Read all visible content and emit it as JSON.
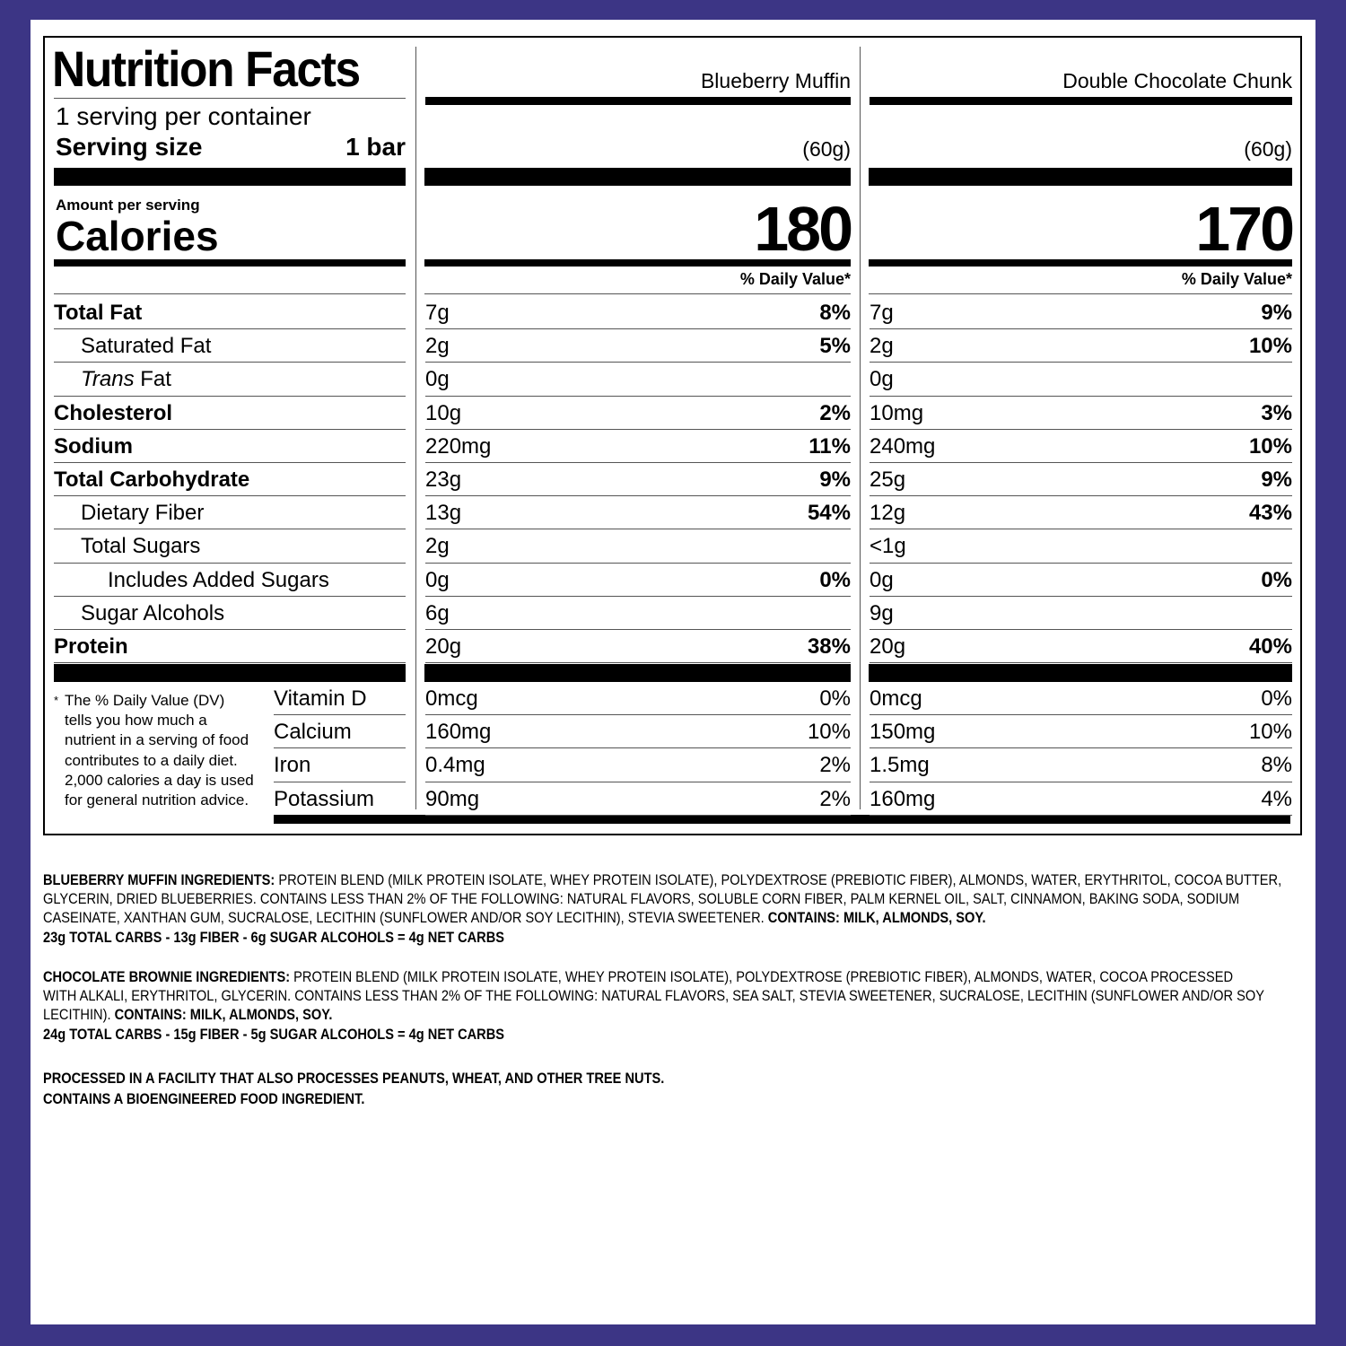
{
  "colors": {
    "background": "#3c3585",
    "panel": "#ffffff",
    "text": "#000000"
  },
  "header": {
    "title": "Nutrition Facts",
    "servings": "1 serving per container",
    "serving_size_label": "Serving size",
    "serving_size_value": "1 bar",
    "amount_per_serving": "Amount per serving",
    "calories_label": "Calories",
    "dv_header": "% Daily Value*"
  },
  "products": [
    {
      "name": "Blueberry Muffin",
      "weight": "(60g)",
      "calories": "180",
      "nutrients": [
        [
          "7g",
          "8%"
        ],
        [
          "2g",
          "5%"
        ],
        [
          "0g",
          ""
        ],
        [
          "10g",
          "2%"
        ],
        [
          "220mg",
          "11%"
        ],
        [
          "23g",
          "9%"
        ],
        [
          "13g",
          "54%"
        ],
        [
          "2g",
          ""
        ],
        [
          "0g",
          "0%"
        ],
        [
          "6g",
          ""
        ],
        [
          "20g",
          "38%"
        ]
      ],
      "vitamins": [
        [
          "0mcg",
          "0%"
        ],
        [
          "160mg",
          "10%"
        ],
        [
          "0.4mg",
          "2%"
        ],
        [
          "90mg",
          "2%"
        ]
      ]
    },
    {
      "name": "Double Chocolate Chunk",
      "weight": "(60g)",
      "calories": "170",
      "nutrients": [
        [
          "7g",
          "9%"
        ],
        [
          "2g",
          "10%"
        ],
        [
          "0g",
          ""
        ],
        [
          "10mg",
          "3%"
        ],
        [
          "240mg",
          "10%"
        ],
        [
          "25g",
          "9%"
        ],
        [
          "12g",
          "43%"
        ],
        [
          "<1g",
          ""
        ],
        [
          "0g",
          "0%"
        ],
        [
          "9g",
          ""
        ],
        [
          "20g",
          "40%"
        ]
      ],
      "vitamins": [
        [
          "0mcg",
          "0%"
        ],
        [
          "150mg",
          "10%"
        ],
        [
          "1.5mg",
          "8%"
        ],
        [
          "160mg",
          "4%"
        ]
      ]
    }
  ],
  "nutrient_labels": [
    {
      "label": "Total Fat",
      "bold": true,
      "indent": 0
    },
    {
      "label": "Saturated Fat",
      "bold": false,
      "indent": 1
    },
    {
      "label": "Trans Fat",
      "bold": false,
      "indent": 1,
      "italic_prefix": "Trans"
    },
    {
      "label": "Cholesterol",
      "bold": true,
      "indent": 0
    },
    {
      "label": "Sodium",
      "bold": true,
      "indent": 0
    },
    {
      "label": "Total Carbohydrate",
      "bold": true,
      "indent": 0
    },
    {
      "label": "Dietary Fiber",
      "bold": false,
      "indent": 1
    },
    {
      "label": "Total Sugars",
      "bold": false,
      "indent": 1
    },
    {
      "label": "Includes Added Sugars",
      "bold": false,
      "indent": 2
    },
    {
      "label": "Sugar Alcohols",
      "bold": false,
      "indent": 1
    },
    {
      "label": "Protein",
      "bold": true,
      "indent": 0
    }
  ],
  "vitamin_labels": [
    "Vitamin D",
    "Calcium",
    "Iron",
    "Potassium"
  ],
  "footnote": {
    "star": "*",
    "lines": [
      "The % Daily Value (DV)",
      "tells you how much a",
      "nutrient in a serving of food",
      "contributes to a daily diet.",
      "2,000 calories a day is used",
      "for general nutrition advice."
    ]
  },
  "ingredients": {
    "blueberry_title": "BLUEBERRY MUFFIN INGREDIENTS:",
    "blueberry_lines": [
      " PROTEIN BLEND (MILK PROTEIN ISOLATE, WHEY PROTEIN ISOLATE), POLYDEXTROSE (PREBIOTIC FIBER), ALMONDS, WATER, ERYTHRITOL, COCOA BUTTER,",
      "GLYCERIN, DRIED BLUEBERRIES. CONTAINS LESS THAN 2% OF THE FOLLOWING: NATURAL FLAVORS, SOLUBLE CORN FIBER, PALM KERNEL OIL, SALT, CINNAMON, BAKING SODA, SODIUM",
      "CASEINATE, XANTHAN GUM, SUCRALOSE, LECITHIN (SUNFLOWER AND/OR SOY LECITHIN), STEVIA SWEETENER. "
    ],
    "blueberry_contains": "CONTAINS: MILK, ALMONDS, SOY.",
    "blueberry_net": "23g TOTAL CARBS - 13g FIBER - 6g SUGAR ALCOHOLS = 4g NET CARBS",
    "brownie_title": "CHOCOLATE BROWNIE INGREDIENTS:",
    "brownie_lines": [
      " PROTEIN BLEND (MILK PROTEIN ISOLATE, WHEY PROTEIN ISOLATE), POLYDEXTROSE (PREBIOTIC FIBER), ALMONDS, WATER, COCOA PROCESSED",
      "WITH ALKALI, ERYTHRITOL, GLYCERIN. CONTAINS LESS THAN 2% OF THE FOLLOWING: NATURAL FLAVORS, SEA SALT, STEVIA SWEETENER, SUCRALOSE, LECITHIN (SUNFLOWER AND/OR SOY",
      "LECITHIN). "
    ],
    "brownie_contains": "CONTAINS: MILK, ALMONDS, SOY.",
    "brownie_net": "24g TOTAL CARBS - 15g FIBER - 5g SUGAR ALCOHOLS = 4g NET CARBS",
    "facility": "PROCESSED IN A FACILITY THAT ALSO PROCESSES PEANUTS, WHEAT, AND OTHER TREE NUTS.",
    "bioengineered": "CONTAINS A BIOENGINEERED FOOD INGREDIENT."
  }
}
